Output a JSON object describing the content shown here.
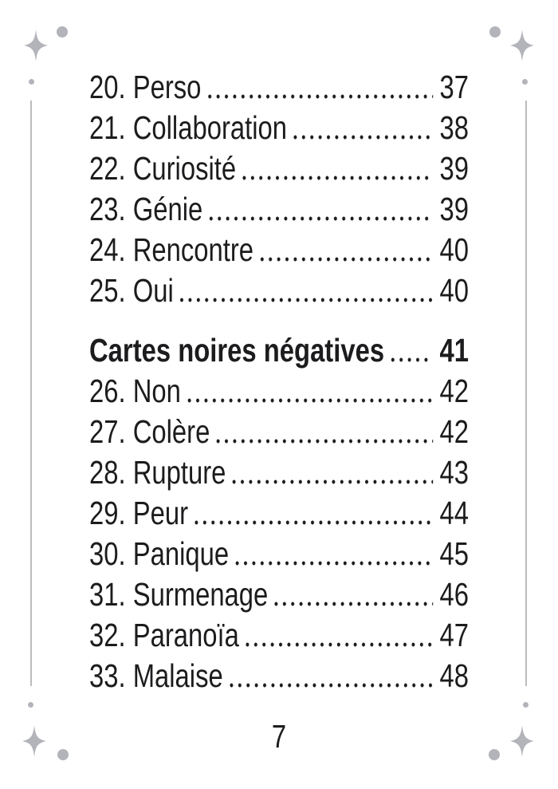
{
  "colors": {
    "ink": "#1c1c1e",
    "decoration": "#b3b4ba",
    "line": "#bcbcc0"
  },
  "toc": {
    "sections": [
      {
        "items": [
          {
            "label": "20. Perso",
            "page": "37"
          },
          {
            "label": "21. Collaboration",
            "page": "38"
          },
          {
            "label": "22. Curiosité",
            "page": "39"
          },
          {
            "label": "23. Génie",
            "page": "39"
          },
          {
            "label": "24. Rencontre",
            "page": "40"
          },
          {
            "label": "25. Oui",
            "page": "40"
          }
        ]
      },
      {
        "header": {
          "label": "Cartes noires négatives",
          "page": "41"
        },
        "items": [
          {
            "label": "26. Non",
            "page": "42"
          },
          {
            "label": "27. Colère",
            "page": "42"
          },
          {
            "label": "28. Rupture",
            "page": "43"
          },
          {
            "label": "29. Peur",
            "page": "44"
          },
          {
            "label": "30. Panique",
            "page": "45"
          },
          {
            "label": "31. Surmenage",
            "page": "46"
          },
          {
            "label": "32. Paranoïa",
            "page": "47"
          },
          {
            "label": "33. Malaise",
            "page": "48"
          }
        ]
      }
    ]
  },
  "footer": {
    "page_number": "7"
  },
  "decorations": {
    "corner_icons": [
      "dot-ornament",
      "sparkle-icon",
      "small-dot-ornament"
    ],
    "margin_lines": 2
  }
}
